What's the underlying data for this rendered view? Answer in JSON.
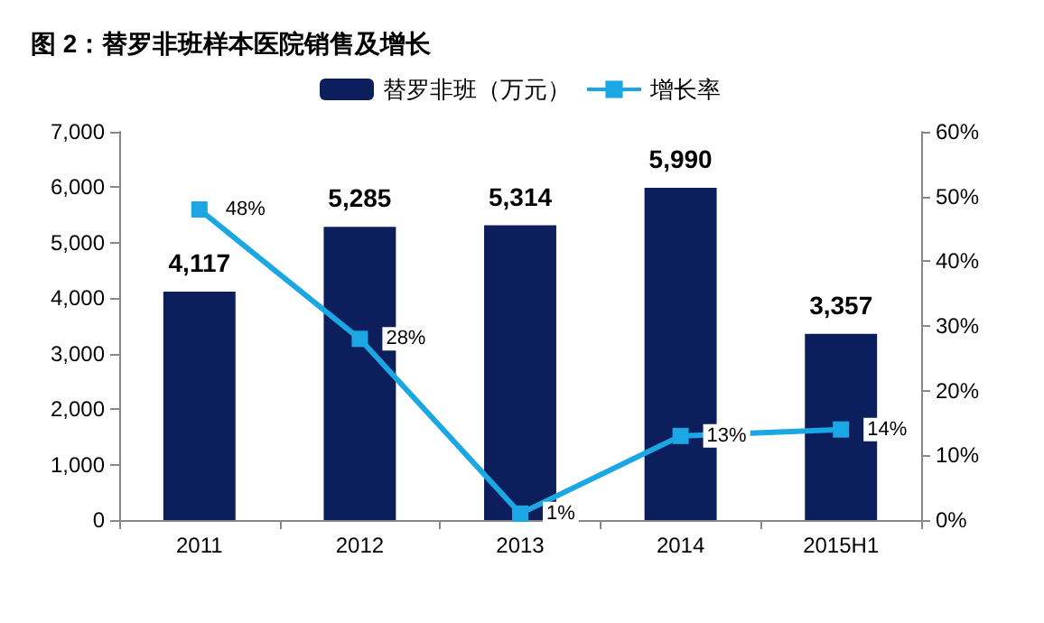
{
  "chart_data": {
    "type": "bar",
    "title": "图 2：替罗非班样本医院销售及增长",
    "categories": [
      "2011",
      "2012",
      "2013",
      "2014",
      "2015H1"
    ],
    "series": [
      {
        "name": "替罗非班（万元）",
        "color": "#0c1f5c",
        "values": [
          4117,
          5285,
          5314,
          5990,
          3357
        ],
        "value_labels": [
          "4,117",
          "5,285",
          "5,314",
          "5,990",
          "3,357"
        ]
      },
      {
        "name": "增长率",
        "type": "line",
        "axis": "y2",
        "color": "#1aa7e3",
        "marker": "square",
        "values": [
          48,
          28,
          1,
          13,
          14
        ],
        "value_labels": [
          "48%",
          "28%",
          "1%",
          "13%",
          "14%"
        ]
      }
    ],
    "ylim": [
      0,
      7000
    ],
    "yticks": [
      0,
      {
        "value": 1000,
        "label": "1,000"
      },
      {
        "value": 2000,
        "label": "2,000"
      },
      {
        "value": 3000,
        "label": "3,000"
      },
      {
        "value": 4000,
        "label": "4,000"
      },
      {
        "value": 5000,
        "label": "5,000"
      },
      {
        "value": 6000,
        "label": "6,000"
      },
      {
        "value": 7000,
        "label": "7,000"
      }
    ],
    "y2lim": [
      0,
      60
    ],
    "y2ticks": [
      {
        "value": 0,
        "label": "0%"
      },
      {
        "value": 10,
        "label": "10%"
      },
      {
        "value": 20,
        "label": "20%"
      },
      {
        "value": 30,
        "label": "30%"
      },
      {
        "value": 40,
        "label": "40%"
      },
      {
        "value": 50,
        "label": "50%"
      },
      {
        "value": 60,
        "label": "60%"
      }
    ],
    "legend": "top",
    "grid": false
  }
}
